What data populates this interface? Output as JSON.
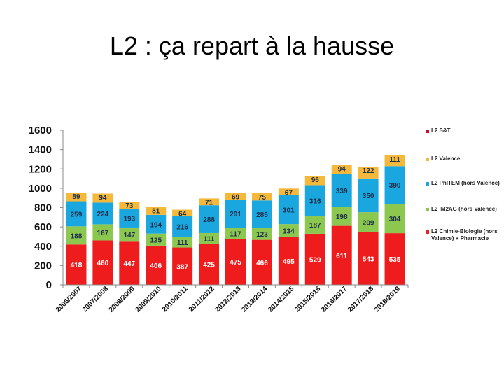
{
  "slide": {
    "title": "L2 : ça repart à la hausse"
  },
  "chart_data": {
    "type": "bar",
    "stacked": true,
    "categories": [
      "2006/2007",
      "2007/2008",
      "2008/2009",
      "2009/2010",
      "2010/2011",
      "2011/2012",
      "2012/2013",
      "2013/2014",
      "2014/2015",
      "2015/2016",
      "2016/2017",
      "2017/2018",
      "2018/2019"
    ],
    "series": [
      {
        "name": "L2 Chimie-Biologie (hors Valence) + Pharmacie",
        "color": "#ee1c1c",
        "values": [
          418,
          460,
          447,
          406,
          387,
          425,
          475,
          466,
          495,
          529,
          611,
          543,
          535
        ],
        "labels": [
          "418",
          "460",
          "447",
          "406",
          "387",
          "425",
          "475",
          "466",
          "495",
          "529",
          "611",
          "543",
          "535"
        ]
      },
      {
        "name": "L2 IM2AG (hors Valence)",
        "color": "#8cc850",
        "values": [
          188,
          167,
          147,
          125,
          111,
          111,
          117,
          123,
          134,
          187,
          198,
          209,
          304
        ],
        "labels": [
          "188",
          "167",
          "147",
          "125",
          "111",
          "111",
          "117",
          "123",
          "134",
          "187",
          "198",
          "209",
          "304"
        ]
      },
      {
        "name": "L2 PhITEM (hors Valence)",
        "color": "#1aa7df",
        "values": [
          259,
          224,
          193,
          194,
          216,
          288,
          291,
          285,
          301,
          316,
          339,
          350,
          390
        ],
        "labels": [
          "259",
          "224",
          "193",
          "194",
          "216",
          "288",
          "291",
          "285",
          "301",
          "316",
          "339",
          "350",
          "390"
        ]
      },
      {
        "name": "L2 Valence",
        "color": "#f4b83a",
        "values": [
          89,
          94,
          73,
          81,
          64,
          71,
          69,
          75,
          67,
          96,
          94,
          122,
          111
        ],
        "labels": [
          "89",
          "94",
          "73",
          "81",
          "64",
          "71",
          "69",
          "75",
          "67",
          "96",
          "94",
          "122",
          "111"
        ]
      },
      {
        "name": "L2 S&T",
        "color": "#c8102e",
        "values": [
          0,
          0,
          0,
          0,
          0,
          0,
          0,
          0,
          0,
          0,
          0,
          0,
          0
        ],
        "labels": []
      }
    ],
    "ylim": [
      0,
      1600
    ],
    "yticks": [
      "0",
      "200",
      "400",
      "600",
      "800",
      "1000",
      "1200",
      "1400",
      "1600"
    ],
    "legend_position": "right",
    "grid": false
  }
}
